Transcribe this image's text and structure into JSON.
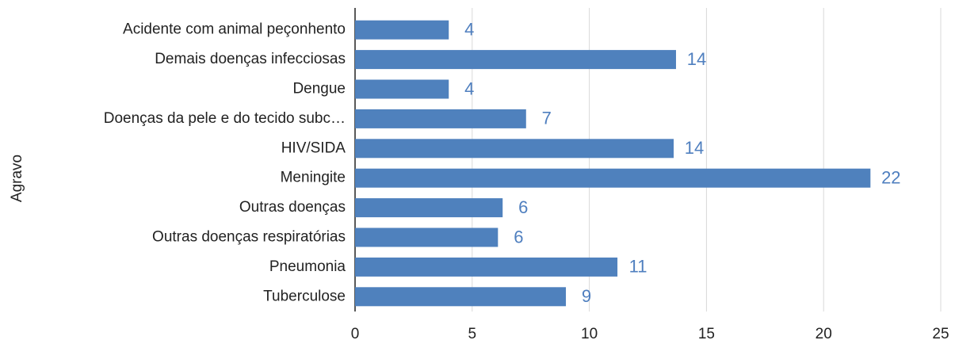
{
  "chart_data": {
    "type": "bar",
    "orientation": "horizontal",
    "y_label": "Agravo",
    "categories": [
      "Acidente com animal peçonhento",
      "Demais doenças infecciosas",
      "Dengue",
      "Doenças da pele e do tecido subc…",
      "HIV/SIDA",
      "Meningite",
      "Outras doenças",
      "Outras doenças respiratórias",
      "Pneumonia",
      "Tuberculose"
    ],
    "values": [
      4,
      13.7,
      4,
      7.3,
      13.6,
      22,
      6.3,
      6.1,
      11.2,
      9
    ],
    "value_labels": [
      "4",
      "14",
      "4",
      "7",
      "14",
      "22",
      "6",
      "6",
      "11",
      "9"
    ],
    "color": "#4f81bd",
    "xlim": [
      0,
      25
    ],
    "xticks": [
      0,
      5,
      10,
      15,
      20,
      25
    ],
    "grid": true
  }
}
